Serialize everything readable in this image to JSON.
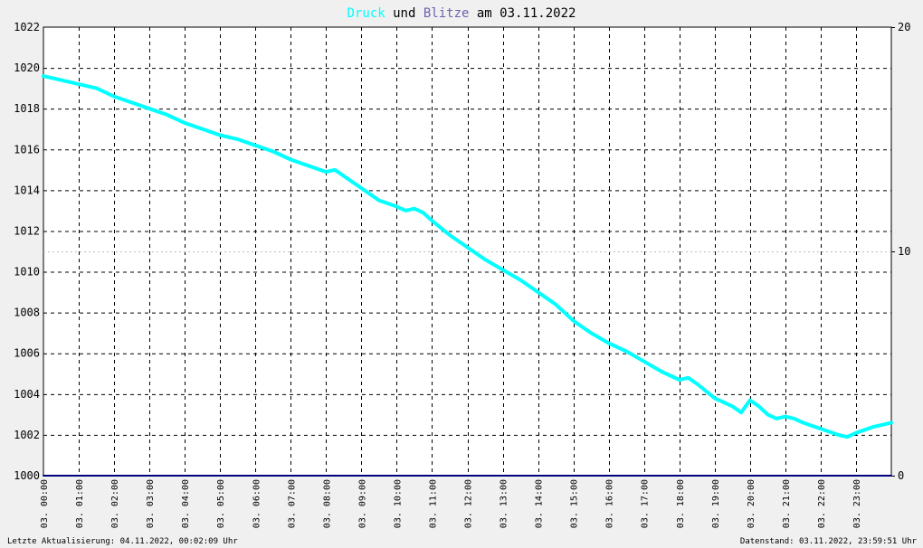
{
  "title": {
    "part1": "Druck",
    "part2": " und ",
    "part3": "Blitze",
    "part4": " am 03.11.2022"
  },
  "colors": {
    "druck": "#00ffff",
    "blitze": "#7060b0",
    "title_text": "#000000",
    "grid": "#000000",
    "axis_line": "#00007f"
  },
  "footer": {
    "left": "Letzte Aktualisierung: 04.11.2022, 00:02:09 Uhr",
    "right": "Datenstand: 03.11.2022, 23:59:51 Uhr"
  },
  "chart_data": {
    "type": "line",
    "x_unit": "hours",
    "xlim": [
      0,
      24
    ],
    "x_ticks": [
      0,
      1,
      2,
      3,
      4,
      5,
      6,
      7,
      8,
      9,
      10,
      11,
      12,
      13,
      14,
      15,
      16,
      17,
      18,
      19,
      20,
      21,
      22,
      23
    ],
    "x_tick_labels": [
      "03. 00:00",
      "03. 01:00",
      "03. 02:00",
      "03. 03:00",
      "03. 04:00",
      "03. 05:00",
      "03. 06:00",
      "03. 07:00",
      "03. 08:00",
      "03. 09:00",
      "03. 10:00",
      "03. 11:00",
      "03. 12:00",
      "03. 13:00",
      "03. 14:00",
      "03. 15:00",
      "03. 16:00",
      "03. 17:00",
      "03. 18:00",
      "03. 19:00",
      "03. 20:00",
      "03. 21:00",
      "03. 22:00",
      "03. 23:00"
    ],
    "y_left": {
      "lim": [
        1000,
        1022
      ],
      "ticks": [
        1000,
        1002,
        1004,
        1006,
        1008,
        1010,
        1012,
        1014,
        1016,
        1018,
        1020,
        1022
      ]
    },
    "y_right": {
      "lim": [
        0,
        20
      ],
      "ticks": [
        0,
        10,
        20
      ]
    },
    "grid": true,
    "series": [
      {
        "name": "Druck",
        "axis": "left",
        "x": [
          0,
          0.5,
          1,
          1.5,
          2,
          2.5,
          3,
          3.5,
          4,
          4.5,
          5,
          5.5,
          6,
          6.5,
          7,
          7.5,
          8,
          8.25,
          8.5,
          9,
          9.5,
          10,
          10.25,
          10.5,
          10.75,
          11,
          11.5,
          12,
          12.5,
          13,
          13.5,
          14,
          14.5,
          15,
          15.5,
          16,
          16.5,
          17,
          17.5,
          18,
          18.25,
          18.5,
          19,
          19.5,
          19.75,
          20,
          20.25,
          20.5,
          20.75,
          21,
          21.25,
          21.5,
          22,
          22.5,
          22.75,
          23,
          23.5,
          24
        ],
        "values": [
          1019.6,
          1019.4,
          1019.2,
          1019.0,
          1018.6,
          1018.3,
          1018.0,
          1017.7,
          1017.3,
          1017.0,
          1016.7,
          1016.5,
          1016.2,
          1015.9,
          1015.5,
          1015.2,
          1014.9,
          1015.0,
          1014.7,
          1014.1,
          1013.5,
          1013.2,
          1013.0,
          1013.1,
          1012.9,
          1012.5,
          1011.8,
          1011.2,
          1010.6,
          1010.1,
          1009.6,
          1009.0,
          1008.4,
          1007.6,
          1007.0,
          1006.5,
          1006.1,
          1005.6,
          1005.1,
          1004.7,
          1004.8,
          1004.5,
          1003.8,
          1003.4,
          1003.1,
          1003.7,
          1003.4,
          1003.0,
          1002.8,
          1002.9,
          1002.8,
          1002.6,
          1002.3,
          1002.0,
          1001.9,
          1002.1,
          1002.4,
          1002.6
        ]
      },
      {
        "name": "Blitze",
        "axis": "right",
        "x": [
          0,
          24
        ],
        "values": [
          0,
          0
        ]
      }
    ]
  }
}
